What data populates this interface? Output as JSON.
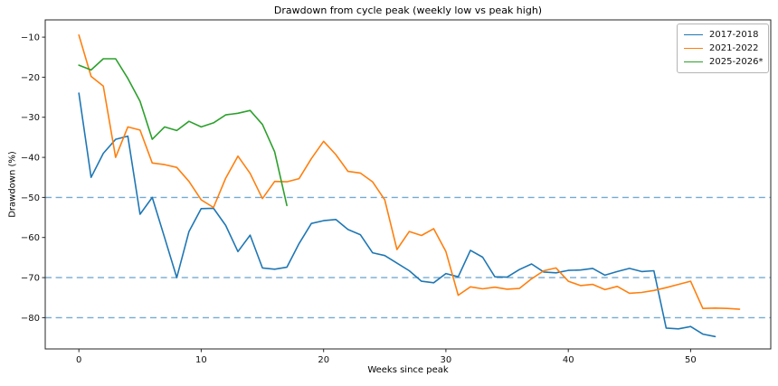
{
  "chart_data": {
    "type": "line",
    "title": "Drawdown from cycle peak (weekly low vs peak high)",
    "xlabel": "Weeks since peak",
    "ylabel": "Drawdown (%)",
    "x_ticks": [
      0,
      10,
      20,
      30,
      40,
      50
    ],
    "y_ticks": [
      -10,
      -20,
      -30,
      -40,
      -50,
      -60,
      -70,
      -80
    ],
    "xlim": [
      -2.75,
      56.55
    ],
    "ylim": [
      -87.8,
      -5.7
    ],
    "grid": false,
    "legend_position": "upper right",
    "x_is_week_index": true,
    "reference_lines": {
      "values": [
        -50,
        -70,
        -80
      ],
      "style": "dashed",
      "color": "#1f77b4"
    },
    "series": [
      {
        "name": "2017-2018",
        "color": "#1f77b4",
        "values": [
          -24,
          -45,
          -39,
          -35.5,
          -34.7,
          -54.2,
          -50,
          -60,
          -70,
          -58.5,
          -52.8,
          -52.7,
          -57,
          -63.5,
          -59.4,
          -67.6,
          -67.9,
          -67.4,
          -61.5,
          -56.5,
          -55.8,
          -55.5,
          -58,
          -59.3,
          -63.8,
          -64.5,
          -66.4,
          -68.3,
          -70.9,
          -71.3,
          -69,
          -69.8,
          -63.2,
          -64.9,
          -69.8,
          -69.9,
          -68,
          -66.6,
          -68.6,
          -68.8,
          -68.2,
          -68.1,
          -67.7,
          -69.4,
          -68.5,
          -67.7,
          -68.5,
          -68.3,
          -82.6,
          -82.8,
          -82.2,
          -84.1,
          -84.7
        ]
      },
      {
        "name": "2021-2022",
        "color": "#ff7f0e",
        "values": [
          -9.5,
          -19.8,
          -22.2,
          -40,
          -32.4,
          -33.2,
          -41.4,
          -41.8,
          -42.5,
          -46,
          -50.6,
          -52.5,
          -45.2,
          -39.7,
          -44,
          -50.3,
          -46,
          -46.1,
          -45.3,
          -40.3,
          -36,
          -39.3,
          -43.5,
          -43.9,
          -46.1,
          -50.6,
          -63,
          -58.5,
          -59.5,
          -57.8,
          -63.5,
          -74.4,
          -72.3,
          -72.8,
          -72.4,
          -72.9,
          -72.7,
          -70.3,
          -68.3,
          -67.6,
          -70.9,
          -72,
          -71.7,
          -73,
          -72.2,
          -73.9,
          -73.7,
          -73.2,
          -72.5,
          -71.7,
          -70.9,
          -77.7,
          -77.6,
          -77.7,
          -77.9
        ]
      },
      {
        "name": "2025-2026*",
        "color": "#2ca02c",
        "values": [
          -17,
          -18.2,
          -15.4,
          -15.4,
          -20.3,
          -26,
          -35.5,
          -32.4,
          -33.3,
          -31,
          -32.4,
          -31.4,
          -29.4,
          -29,
          -28.3,
          -31.8,
          -38.6,
          -52
        ]
      }
    ]
  }
}
